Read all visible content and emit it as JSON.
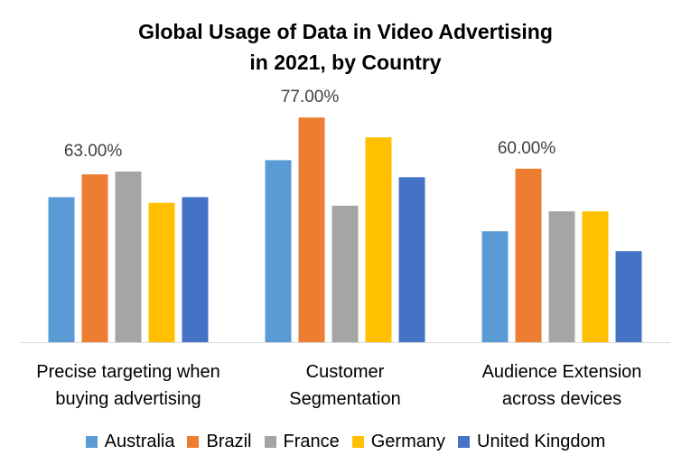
{
  "chart_data": {
    "type": "bar",
    "title": [
      "Global Usage of Data in Video Advertising",
      "in 2021, by Country"
    ],
    "categories": [
      [
        "Precise targeting when",
        "buying advertising"
      ],
      [
        "Customer",
        "Segmentation"
      ],
      [
        "Audience Extension",
        "across devices"
      ]
    ],
    "series": [
      {
        "name": "Australia",
        "color": "#5B9BD5",
        "values": [
          0.51,
          0.64,
          0.39
        ]
      },
      {
        "name": "Brazil",
        "color": "#ED7D31",
        "values": [
          0.59,
          0.79,
          0.61
        ]
      },
      {
        "name": "France",
        "color": "#A5A5A5",
        "values": [
          0.6,
          0.48,
          0.46
        ]
      },
      {
        "name": "Germany",
        "color": "#FFC000",
        "values": [
          0.49,
          0.72,
          0.46
        ]
      },
      {
        "name": "United Kingdom",
        "color": "#4472C4",
        "values": [
          0.51,
          0.58,
          0.32
        ]
      }
    ],
    "data_labels": [
      {
        "category_index": 0,
        "text": "63.00%"
      },
      {
        "category_index": 1,
        "text": "77.00%"
      },
      {
        "category_index": 2,
        "text": "60.00%"
      }
    ],
    "ylim": [
      0,
      0.8
    ],
    "xlabel": "",
    "ylabel": "",
    "grid": false,
    "legend_position": "bottom"
  }
}
